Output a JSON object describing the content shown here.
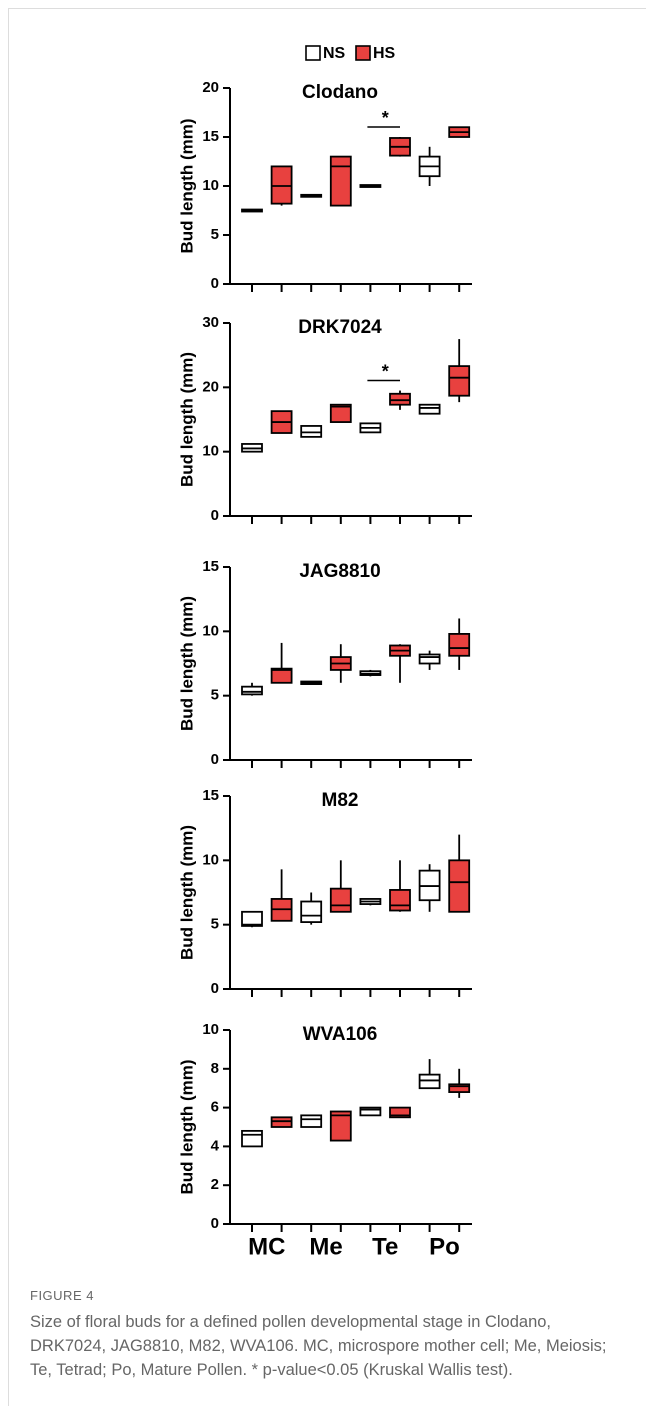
{
  "legend": [
    {
      "name": "NS",
      "color": "#ffffff"
    },
    {
      "name": "HS",
      "color": "#e8413f"
    }
  ],
  "chart_data": [
    {
      "type": "box",
      "title": "Clodano",
      "y_label": "Bud length (mm)",
      "ylim": [
        0,
        20
      ],
      "yticks": [
        0,
        5,
        10,
        15,
        20
      ],
      "annotation": "*",
      "series": [
        {
          "values": [
            {
              "min": 7.4,
              "q1": 7.4,
              "median": 7.5,
              "q3": 7.6,
              "max": 7.6
            },
            {
              "min": 9,
              "q1": 9,
              "median": 9,
              "q3": 9.1,
              "max": 9.1
            },
            {
              "min": 9.9,
              "q1": 9.9,
              "median": 10,
              "q3": 10.1,
              "max": 10.1
            },
            {
              "min": 10,
              "q1": 11,
              "median": 12,
              "q3": 13,
              "max": 14
            }
          ]
        },
        {
          "values": [
            {
              "min": 8,
              "q1": 8.2,
              "median": 10,
              "q3": 12,
              "max": 12
            },
            {
              "min": 8,
              "q1": 8,
              "median": 12,
              "q3": 13,
              "max": 13
            },
            {
              "min": 13,
              "q1": 13.1,
              "median": 14,
              "q3": 14.9,
              "max": 15
            },
            {
              "min": 15,
              "q1": 15,
              "median": 15.5,
              "q3": 16,
              "max": 16
            }
          ]
        }
      ]
    },
    {
      "type": "box",
      "title": "DRK7024",
      "y_label": "Bud length (mm)",
      "ylim": [
        0,
        30
      ],
      "yticks": [
        0,
        10,
        20,
        30
      ],
      "annotation": "*",
      "series": [
        {
          "values": [
            {
              "min": 10,
              "q1": 10,
              "median": 10.5,
              "q3": 11.2,
              "max": 11.2
            },
            {
              "min": 12.3,
              "q1": 12.3,
              "median": 13,
              "q3": 14,
              "max": 14
            },
            {
              "min": 13,
              "q1": 13,
              "median": 13.7,
              "q3": 14.4,
              "max": 14.5
            },
            {
              "min": 15.9,
              "q1": 15.9,
              "median": 16.8,
              "q3": 17.3,
              "max": 17.3
            }
          ]
        },
        {
          "values": [
            {
              "min": 12.9,
              "q1": 12.9,
              "median": 14.6,
              "q3": 16.3,
              "max": 16.3
            },
            {
              "min": 14.6,
              "q1": 14.6,
              "median": 17,
              "q3": 17.3,
              "max": 17.3
            },
            {
              "min": 16.5,
              "q1": 17.3,
              "median": 18,
              "q3": 19,
              "max": 19.5
            },
            {
              "min": 17.7,
              "q1": 18.7,
              "median": 21.5,
              "q3": 23.3,
              "max": 27.5
            }
          ]
        }
      ]
    },
    {
      "type": "box",
      "title": "JAG8810",
      "y_label": "Bud length (mm)",
      "ylim": [
        0,
        15
      ],
      "yticks": [
        0,
        5,
        10,
        15
      ],
      "series": [
        {
          "values": [
            {
              "min": 5,
              "q1": 5.1,
              "median": 5.3,
              "q3": 5.7,
              "max": 6
            },
            {
              "min": 5.9,
              "q1": 5.9,
              "median": 6,
              "q3": 6.1,
              "max": 6.1
            },
            {
              "min": 6.5,
              "q1": 6.6,
              "median": 6.7,
              "q3": 6.9,
              "max": 7
            },
            {
              "min": 7,
              "q1": 7.5,
              "median": 8,
              "q3": 8.2,
              "max": 8.5
            }
          ]
        },
        {
          "values": [
            {
              "min": 6,
              "q1": 6,
              "median": 7,
              "q3": 7.1,
              "max": 9.1
            },
            {
              "min": 6,
              "q1": 7,
              "median": 7.5,
              "q3": 8,
              "max": 9
            },
            {
              "min": 6,
              "q1": 8.1,
              "median": 8.5,
              "q3": 8.9,
              "max": 9
            },
            {
              "min": 7,
              "q1": 8.1,
              "median": 8.7,
              "q3": 9.8,
              "max": 11
            }
          ]
        }
      ]
    },
    {
      "type": "box",
      "title": "M82",
      "y_label": "Bud length (mm)",
      "ylim": [
        0,
        15
      ],
      "yticks": [
        0,
        5,
        10,
        15
      ],
      "series": [
        {
          "values": [
            {
              "min": 4.8,
              "q1": 4.9,
              "median": 5,
              "q3": 6,
              "max": 6
            },
            {
              "min": 5,
              "q1": 5.2,
              "median": 5.7,
              "q3": 6.8,
              "max": 7.5
            },
            {
              "min": 6.5,
              "q1": 6.6,
              "median": 6.8,
              "q3": 7,
              "max": 7
            },
            {
              "min": 6,
              "q1": 6.9,
              "median": 8,
              "q3": 9.2,
              "max": 9.7
            }
          ]
        },
        {
          "values": [
            {
              "min": 5.3,
              "q1": 5.3,
              "median": 6.2,
              "q3": 7,
              "max": 9.3
            },
            {
              "min": 6,
              "q1": 6,
              "median": 6.5,
              "q3": 7.8,
              "max": 10
            },
            {
              "min": 6,
              "q1": 6.1,
              "median": 6.5,
              "q3": 7.7,
              "max": 10
            },
            {
              "min": 6,
              "q1": 6,
              "median": 8.3,
              "q3": 10,
              "max": 12
            }
          ]
        }
      ]
    },
    {
      "type": "box",
      "title": "WVA106",
      "y_label": "Bud length (mm)",
      "ylim": [
        0,
        10
      ],
      "yticks": [
        0,
        2,
        4,
        6,
        8,
        10
      ],
      "categories": [
        "MC",
        "Me",
        "Te",
        "Po"
      ],
      "series": [
        {
          "values": [
            {
              "min": 4,
              "q1": 4,
              "median": 4.6,
              "q3": 4.8,
              "max": 4.8
            },
            {
              "min": 5,
              "q1": 5,
              "median": 5.4,
              "q3": 5.6,
              "max": 5.6
            },
            {
              "min": 5.6,
              "q1": 5.6,
              "median": 5.9,
              "q3": 6,
              "max": 6
            },
            {
              "min": 7,
              "q1": 7,
              "median": 7.4,
              "q3": 7.7,
              "max": 8.5
            }
          ]
        },
        {
          "values": [
            {
              "min": 5,
              "q1": 5,
              "median": 5.3,
              "q3": 5.5,
              "max": 5.5
            },
            {
              "min": 4.3,
              "q1": 4.3,
              "median": 5.6,
              "q3": 5.8,
              "max": 5.8
            },
            {
              "min": 5.5,
              "q1": 5.5,
              "median": 5.6,
              "q3": 6,
              "max": 6
            },
            {
              "min": 6.5,
              "q1": 6.8,
              "median": 7.1,
              "q3": 7.2,
              "max": 8
            }
          ]
        }
      ]
    }
  ],
  "figure": {
    "label": "FIGURE 4",
    "caption": "Size of floral buds for a defined pollen developmental stage in Clodano, DRK7024, JAG8810, M82, WVA106. MC, microspore mother cell; Me, Meiosis; Te, Tetrad; Po, Mature Pollen. * p-value<0.05 (Kruskal Wallis test)."
  }
}
